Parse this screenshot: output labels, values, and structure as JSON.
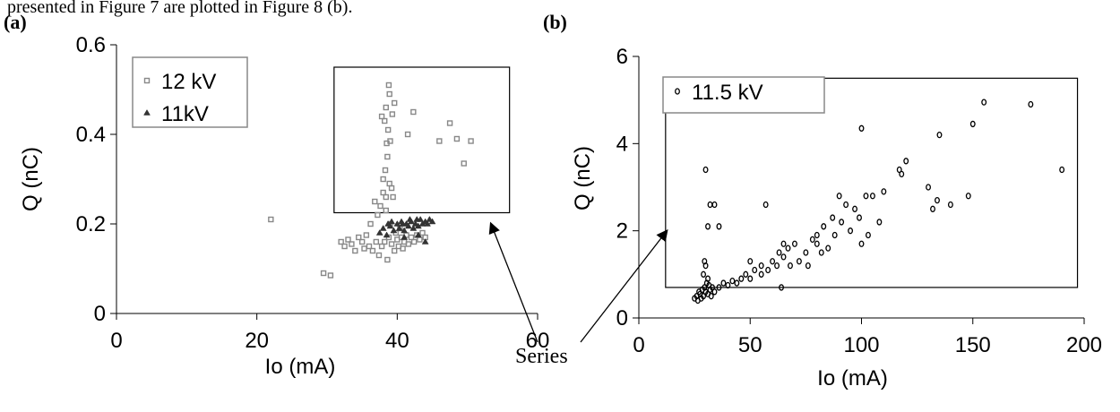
{
  "caption_fragment": "presented in Figure 7 are plotted in Figure 8 (b).",
  "annotation": {
    "text": "Series"
  },
  "colors": {
    "gray_marker": "#888888",
    "dark_marker": "#333333",
    "axis": "#000000",
    "legend_border": "#888888"
  },
  "chart_data": [
    {
      "panel_label": "(a)",
      "type": "scatter",
      "xlabel": "Io (mA)",
      "ylabel": "Q (nC)",
      "xlim": [
        0,
        60
      ],
      "ylim": [
        0,
        0.6
      ],
      "xticks": [
        0,
        20,
        40,
        60
      ],
      "yticks": [
        0,
        0.2,
        0.4,
        0.6
      ],
      "xtick_labels": [
        "0",
        "20",
        "40",
        "60"
      ],
      "ytick_labels": [
        "0",
        "0.2",
        "0.4",
        "0.6"
      ],
      "grid": false,
      "legend_position": "top-left",
      "highlight_box": {
        "x": [
          31,
          56
        ],
        "y": [
          0.225,
          0.55
        ]
      },
      "series": [
        {
          "name": "12  kV",
          "marker": "square",
          "points": [
            [
              22,
              0.21
            ],
            [
              29.5,
              0.09
            ],
            [
              30.5,
              0.085
            ],
            [
              32,
              0.16
            ],
            [
              32.5,
              0.15
            ],
            [
              33,
              0.165
            ],
            [
              33.5,
              0.155
            ],
            [
              34,
              0.14
            ],
            [
              34.5,
              0.17
            ],
            [
              35,
              0.16
            ],
            [
              35.3,
              0.145
            ],
            [
              35.6,
              0.175
            ],
            [
              36,
              0.15
            ],
            [
              36.2,
              0.2
            ],
            [
              36.5,
              0.14
            ],
            [
              36.8,
              0.25
            ],
            [
              37,
              0.16
            ],
            [
              37.2,
              0.22
            ],
            [
              37.4,
              0.13
            ],
            [
              37.6,
              0.24
            ],
            [
              37.8,
              0.15
            ],
            [
              38,
              0.27
            ],
            [
              38.2,
              0.16
            ],
            [
              38.4,
              0.23
            ],
            [
              38.6,
              0.12
            ],
            [
              38.8,
              0.17
            ],
            [
              39,
              0.2
            ],
            [
              39.2,
              0.155
            ],
            [
              39.4,
              0.26
            ],
            [
              39.6,
              0.14
            ],
            [
              39.8,
              0.18
            ],
            [
              40,
              0.165
            ],
            [
              40.2,
              0.15
            ],
            [
              40.4,
              0.19
            ],
            [
              40.6,
              0.17
            ],
            [
              40.8,
              0.145
            ],
            [
              41,
              0.16
            ],
            [
              41.3,
              0.175
            ],
            [
              41.6,
              0.155
            ],
            [
              42,
              0.17
            ],
            [
              42.4,
              0.16
            ],
            [
              42.8,
              0.175
            ],
            [
              43.2,
              0.165
            ],
            [
              43.6,
              0.18
            ],
            [
              44,
              0.17
            ],
            [
              38,
              0.3
            ],
            [
              38.3,
              0.32
            ],
            [
              38.6,
              0.35
            ],
            [
              38.9,
              0.29
            ],
            [
              39.2,
              0.28
            ],
            [
              38.4,
              0.26
            ],
            [
              37.8,
              0.44
            ],
            [
              38.2,
              0.43
            ],
            [
              38.7,
              0.41
            ],
            [
              39.3,
              0.445
            ],
            [
              39,
              0.385
            ],
            [
              38.5,
              0.38
            ],
            [
              38.8,
              0.51
            ],
            [
              38.4,
              0.46
            ],
            [
              39.6,
              0.47
            ],
            [
              38.9,
              0.49
            ],
            [
              41.5,
              0.4
            ],
            [
              42.3,
              0.45
            ],
            [
              46,
              0.385
            ],
            [
              47.5,
              0.425
            ],
            [
              48.5,
              0.39
            ],
            [
              50.5,
              0.385
            ],
            [
              49.5,
              0.335
            ]
          ]
        },
        {
          "name": "11kV",
          "marker": "triangle",
          "points": [
            [
              37.5,
              0.18
            ],
            [
              38,
              0.19
            ],
            [
              38.5,
              0.175
            ],
            [
              39,
              0.195
            ],
            [
              39.5,
              0.185
            ],
            [
              40,
              0.2
            ],
            [
              40.3,
              0.19
            ],
            [
              40.6,
              0.205
            ],
            [
              41,
              0.185
            ],
            [
              41.3,
              0.2
            ],
            [
              41.6,
              0.195
            ],
            [
              42,
              0.205
            ],
            [
              42.3,
              0.19
            ],
            [
              42.6,
              0.2
            ],
            [
              43,
              0.195
            ],
            [
              43.3,
              0.21
            ],
            [
              43.6,
              0.2
            ],
            [
              44,
              0.205
            ],
            [
              44.3,
              0.2
            ],
            [
              44.6,
              0.21
            ],
            [
              45,
              0.205
            ],
            [
              39.2,
              0.205
            ],
            [
              40.8,
              0.2
            ],
            [
              41.8,
              0.21
            ],
            [
              42.8,
              0.21
            ],
            [
              38.7,
              0.2
            ],
            [
              44,
              0.16
            ],
            [
              43,
              0.175
            ],
            [
              41,
              0.17
            ]
          ]
        }
      ]
    },
    {
      "panel_label": "(b)",
      "type": "scatter",
      "xlabel": "Io (mA)",
      "ylabel": "Q (nC)",
      "xlim": [
        0,
        200
      ],
      "ylim": [
        0,
        6
      ],
      "xticks": [
        0,
        50,
        100,
        150,
        200
      ],
      "yticks": [
        0,
        2,
        4,
        6
      ],
      "xtick_labels": [
        "0",
        "50",
        "100",
        "150",
        "200"
      ],
      "ytick_labels": [
        "0",
        "2",
        "4",
        "6"
      ],
      "grid": false,
      "legend_position": "top-left",
      "highlight_box": {
        "x": [
          12,
          197
        ],
        "y": [
          0.7,
          5.5
        ]
      },
      "series": [
        {
          "name": "11.5 kV",
          "marker": "circle",
          "points": [
            [
              25,
              0.45
            ],
            [
              26,
              0.5
            ],
            [
              26.5,
              0.4
            ],
            [
              27,
              0.6
            ],
            [
              27.5,
              0.55
            ],
            [
              28,
              0.45
            ],
            [
              28.5,
              0.65
            ],
            [
              29,
              0.5
            ],
            [
              29.5,
              0.7
            ],
            [
              30,
              0.6
            ],
            [
              30.5,
              0.8
            ],
            [
              31,
              0.55
            ],
            [
              31.5,
              0.75
            ],
            [
              32,
              0.65
            ],
            [
              32.5,
              0.5
            ],
            [
              33,
              0.7
            ],
            [
              34,
              0.6
            ],
            [
              29,
              1.0
            ],
            [
              29.5,
              1.3
            ],
            [
              30,
              1.2
            ],
            [
              31,
              0.9
            ],
            [
              30,
              3.4
            ],
            [
              32,
              2.6
            ],
            [
              34,
              2.6
            ],
            [
              31,
              2.1
            ],
            [
              36,
              2.1
            ],
            [
              36,
              0.7
            ],
            [
              38,
              0.8
            ],
            [
              40,
              0.75
            ],
            [
              42,
              0.85
            ],
            [
              44,
              0.8
            ],
            [
              46,
              0.9
            ],
            [
              48,
              1.0
            ],
            [
              50,
              0.9
            ],
            [
              50,
              1.3
            ],
            [
              52,
              1.1
            ],
            [
              55,
              1.2
            ],
            [
              55,
              1.0
            ],
            [
              57,
              2.6
            ],
            [
              58,
              1.1
            ],
            [
              60,
              1.3
            ],
            [
              62,
              1.2
            ],
            [
              63,
              1.5
            ],
            [
              64,
              0.7
            ],
            [
              65,
              1.4
            ],
            [
              65,
              1.7
            ],
            [
              67,
              1.6
            ],
            [
              68,
              1.2
            ],
            [
              70,
              1.7
            ],
            [
              72,
              1.3
            ],
            [
              75,
              1.5
            ],
            [
              76,
              1.2
            ],
            [
              78,
              1.8
            ],
            [
              80,
              1.7
            ],
            [
              80,
              1.9
            ],
            [
              82,
              1.5
            ],
            [
              83,
              2.1
            ],
            [
              85,
              1.6
            ],
            [
              87,
              2.3
            ],
            [
              88,
              1.9
            ],
            [
              90,
              2.8
            ],
            [
              91,
              2.2
            ],
            [
              93,
              2.6
            ],
            [
              95,
              2.0
            ],
            [
              97,
              2.5
            ],
            [
              99,
              2.3
            ],
            [
              100,
              1.7
            ],
            [
              100,
              4.35
            ],
            [
              102,
              2.8
            ],
            [
              103,
              1.9
            ],
            [
              105,
              2.8
            ],
            [
              108,
              2.2
            ],
            [
              110,
              2.9
            ],
            [
              117,
              3.4
            ],
            [
              120,
              3.6
            ],
            [
              118,
              3.3
            ],
            [
              130,
              3.0
            ],
            [
              132,
              2.5
            ],
            [
              134,
              2.7
            ],
            [
              135,
              4.2
            ],
            [
              140,
              2.6
            ],
            [
              148,
              2.8
            ],
            [
              150,
              4.45
            ],
            [
              155,
              4.95
            ],
            [
              176,
              4.9
            ],
            [
              190,
              3.4
            ]
          ]
        }
      ]
    }
  ]
}
